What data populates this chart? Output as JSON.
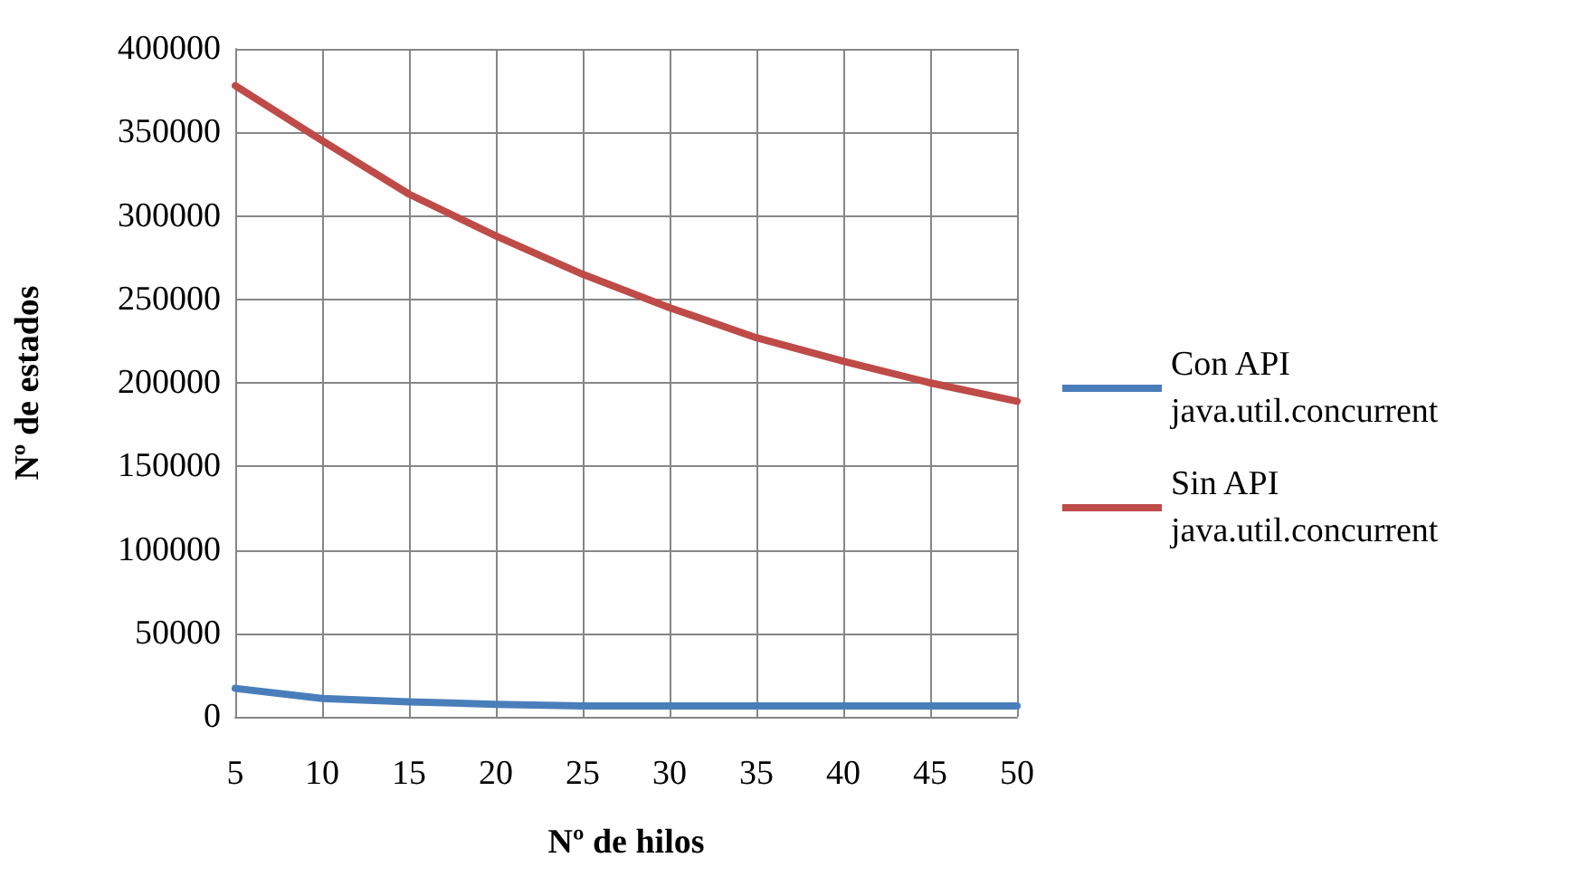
{
  "chart_data": {
    "type": "line",
    "xlabel": "Nº de hilos",
    "ylabel": "Nº de estados",
    "x": [
      5,
      10,
      15,
      20,
      25,
      30,
      35,
      40,
      45,
      50
    ],
    "series": [
      {
        "name": "Con API java.util.concurrent",
        "color": "#4a7ebb",
        "values": [
          17000,
          11000,
          9000,
          7500,
          6500,
          6500,
          6500,
          6500,
          6500,
          6500
        ]
      },
      {
        "name": "Sin API java.util.concurrent",
        "color": "#be4b48",
        "values": [
          378000,
          345000,
          313000,
          288000,
          265000,
          245000,
          227000,
          213000,
          200000,
          189000
        ]
      }
    ],
    "xlim": [
      5,
      50
    ],
    "xticks": [
      5,
      10,
      15,
      20,
      25,
      30,
      35,
      40,
      45,
      50
    ],
    "ylim": [
      0,
      400000
    ],
    "yticks": [
      0,
      50000,
      100000,
      150000,
      200000,
      250000,
      300000,
      350000,
      400000
    ],
    "grid": true,
    "legend": "right",
    "marker": "none",
    "line_style": "solid"
  }
}
